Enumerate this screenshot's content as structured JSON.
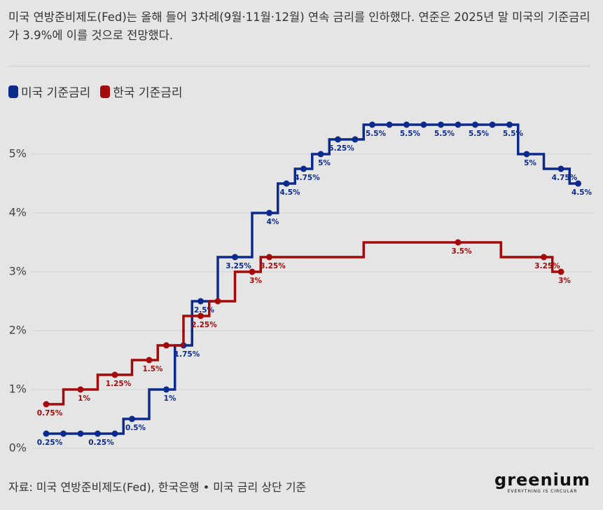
{
  "chart_data": {
    "type": "step",
    "title": "미국 연방준비제도(Fed)는 올해 들어 3차례(9월·11월·12월) 연속 금리를 인하했다. 연준은 2025년 말 미국의 기준금리가 3.9%에 이를 것으로 전망했다.",
    "source": "자료: 미국 연방준비제도(Fed), 한국은행 • 미국 금리 상단 기준",
    "logo": "greenium",
    "logo_tagline": "EVERYTHING IS CIRCULAR",
    "categories": [
      null,
      null,
      null,
      null,
      null,
      null,
      null,
      null,
      null,
      null,
      null,
      null,
      null,
      null,
      null,
      null,
      null,
      null,
      null,
      null,
      null,
      null,
      null,
      null,
      null,
      null,
      null,
      null,
      null,
      null,
      null,
      null
    ],
    "ylim": [
      0,
      5.5
    ],
    "yticks": [
      {
        "value": 0,
        "label": "0%"
      },
      {
        "value": 1,
        "label": "1%"
      },
      {
        "value": 2,
        "label": "2%"
      },
      {
        "value": 3,
        "label": "3%"
      },
      {
        "value": 4,
        "label": "4%"
      },
      {
        "value": 5,
        "label": "5%"
      }
    ],
    "grid": true,
    "legend": "top-left",
    "series": [
      {
        "name": "미국 기준금리",
        "color": "#0b2a8c",
        "values": [
          0.25,
          0.25,
          0.25,
          0.25,
          0.25,
          0.5,
          null,
          1,
          1.75,
          2.5,
          null,
          3.25,
          null,
          4,
          4.5,
          4.75,
          5,
          5.25,
          5.25,
          5.5,
          5.5,
          5.5,
          5.5,
          5.5,
          5.5,
          5.5,
          5.5,
          5.5,
          5,
          null,
          4.75,
          4.5
        ],
        "value_labels": [
          "0.25%",
          null,
          null,
          "0.25%",
          null,
          "0.5%",
          null,
          "1%",
          "1.75%",
          "2.5%",
          null,
          "3.25%",
          null,
          "4%",
          "4.5%",
          "4.75%",
          "5%",
          "5.25%",
          null,
          "5.5%",
          null,
          "5.5%",
          null,
          "5.5%",
          null,
          "5.5%",
          null,
          "5.5%",
          "5%",
          null,
          "4.75%",
          "4.5%"
        ]
      },
      {
        "name": "한국 기준금리",
        "color": "#a50a0a",
        "values": [
          0.75,
          null,
          1,
          null,
          1.25,
          null,
          1.5,
          1.75,
          null,
          2.25,
          2.5,
          null,
          3,
          3.25,
          null,
          null,
          null,
          null,
          null,
          null,
          null,
          null,
          null,
          null,
          3.5,
          null,
          null,
          null,
          null,
          3.25,
          3,
          null
        ],
        "value_labels": [
          "0.75%",
          null,
          "1%",
          null,
          "1.25%",
          null,
          "1.5%",
          null,
          null,
          "2.25%",
          null,
          null,
          "3%",
          "3.25%",
          null,
          null,
          null,
          null,
          null,
          null,
          null,
          null,
          null,
          null,
          "3.5%",
          null,
          null,
          null,
          null,
          "3.25%",
          "3%",
          null
        ]
      }
    ]
  }
}
